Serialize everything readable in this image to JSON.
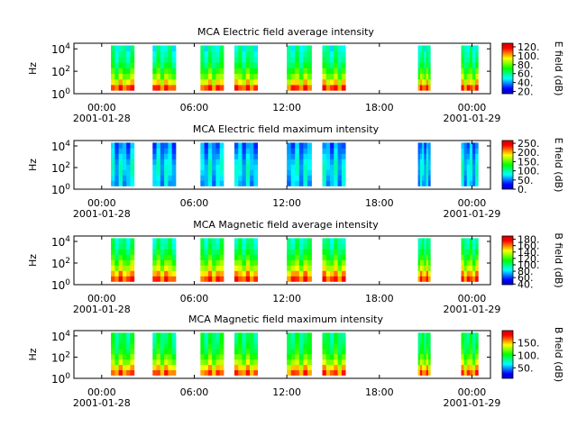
{
  "colors": {
    "colormap": [
      "#0000cc",
      "#0000ff",
      "#0080ff",
      "#00ffff",
      "#00ff80",
      "#00ff00",
      "#80ff00",
      "#ffff00",
      "#ff8000",
      "#ff0000",
      "#cc0000"
    ],
    "gap": "#ffffff",
    "axis": "#000000"
  },
  "chart_data": [
    {
      "type": "heatmap",
      "title": "MCA  Electric field average intensity",
      "ylabel": "Hz",
      "colorbar_label": "E field (dB)",
      "colorbar_ticks": [
        "20.",
        "40.",
        "60.",
        "80.",
        "100.",
        "120."
      ],
      "colorbar_range": [
        15,
        128
      ],
      "yticks": [
        "10^0",
        "10^2",
        "10^4"
      ],
      "xticks": [
        {
          "time": "00:00",
          "date": "2001-01-28"
        },
        {
          "time": "06:00",
          "date": ""
        },
        {
          "time": "12:00",
          "date": ""
        },
        {
          "time": "18:00",
          "date": ""
        },
        {
          "time": "00:00",
          "date": "2001-01-29"
        }
      ],
      "xlim_hours": [
        -1.8,
        25.2
      ],
      "ylim_log10_hz": [
        0,
        4.5
      ],
      "data_coverage_hours": [
        [
          0.6,
          2.1
        ],
        [
          3.3,
          4.8
        ],
        [
          6.4,
          7.9
        ],
        [
          8.6,
          10.1
        ],
        [
          12.0,
          13.6
        ],
        [
          14.3,
          15.8
        ],
        [
          20.5,
          21.3
        ],
        [
          23.3,
          24.4
        ]
      ],
      "intensity_level_low_freq_to_high": [
        0.85,
        0.7,
        0.6,
        0.52,
        0.45,
        0.4,
        0.38,
        0.35
      ]
    },
    {
      "type": "heatmap",
      "title": "MCA  Electric field maximum intensity",
      "ylabel": "Hz",
      "colorbar_label": "E field (dB)",
      "colorbar_ticks": [
        "0.",
        "50.",
        "100.",
        "150.",
        "200.",
        "250."
      ],
      "colorbar_range": [
        0,
        265
      ],
      "yticks": [
        "10^0",
        "10^2",
        "10^4"
      ],
      "xticks": [
        {
          "time": "00:00",
          "date": "2001-01-28"
        },
        {
          "time": "06:00",
          "date": ""
        },
        {
          "time": "12:00",
          "date": ""
        },
        {
          "time": "18:00",
          "date": ""
        },
        {
          "time": "00:00",
          "date": "2001-01-29"
        }
      ],
      "xlim_hours": [
        -1.8,
        25.2
      ],
      "ylim_log10_hz": [
        0,
        4.5
      ],
      "data_coverage_hours": [
        [
          0.6,
          2.1
        ],
        [
          3.3,
          4.8
        ],
        [
          6.4,
          7.9
        ],
        [
          8.6,
          10.1
        ],
        [
          12.0,
          13.6
        ],
        [
          14.3,
          15.8
        ],
        [
          20.5,
          21.3
        ],
        [
          23.3,
          24.4
        ]
      ],
      "intensity_level_low_freq_to_high": [
        0.25,
        0.27,
        0.29,
        0.3,
        0.28,
        0.25,
        0.22,
        0.2
      ]
    },
    {
      "type": "heatmap",
      "title": "MCA  Magnetic field average intensity",
      "ylabel": "Hz",
      "colorbar_label": "B field (dB)",
      "colorbar_ticks": [
        "40.",
        "60.",
        "80.",
        "100.",
        "120.",
        "140.",
        "160.",
        "180."
      ],
      "colorbar_range": [
        38,
        190
      ],
      "yticks": [
        "10^0",
        "10^2",
        "10^4"
      ],
      "xticks": [
        {
          "time": "00:00",
          "date": "2001-01-28"
        },
        {
          "time": "06:00",
          "date": ""
        },
        {
          "time": "12:00",
          "date": ""
        },
        {
          "time": "18:00",
          "date": ""
        },
        {
          "time": "00:00",
          "date": "2001-01-29"
        }
      ],
      "xlim_hours": [
        -1.8,
        25.2
      ],
      "ylim_log10_hz": [
        0,
        4.5
      ],
      "data_coverage_hours": [
        [
          0.6,
          2.1
        ],
        [
          3.3,
          4.8
        ],
        [
          6.4,
          7.9
        ],
        [
          8.6,
          10.1
        ],
        [
          12.0,
          13.6
        ],
        [
          14.3,
          15.8
        ],
        [
          20.5,
          21.3
        ],
        [
          23.3,
          24.4
        ]
      ],
      "intensity_level_low_freq_to_high": [
        0.85,
        0.75,
        0.65,
        0.58,
        0.5,
        0.45,
        0.4,
        0.38
      ]
    },
    {
      "type": "heatmap",
      "title": "MCA  Magnetic field maximum intensity",
      "ylabel": "Hz",
      "colorbar_label": "B field (dB)",
      "colorbar_ticks": [
        "50.",
        "100.",
        "150."
      ],
      "colorbar_range": [
        8,
        198
      ],
      "yticks": [
        "10^0",
        "10^2",
        "10^4"
      ],
      "xticks": [
        {
          "time": "00:00",
          "date": "2001-01-28"
        },
        {
          "time": "06:00",
          "date": ""
        },
        {
          "time": "12:00",
          "date": ""
        },
        {
          "time": "18:00",
          "date": ""
        },
        {
          "time": "00:00",
          "date": "2001-01-29"
        }
      ],
      "xlim_hours": [
        -1.8,
        25.2
      ],
      "ylim_log10_hz": [
        0,
        4.5
      ],
      "data_coverage_hours": [
        [
          0.6,
          2.1
        ],
        [
          3.3,
          4.8
        ],
        [
          6.4,
          7.9
        ],
        [
          8.6,
          10.1
        ],
        [
          12.0,
          13.6
        ],
        [
          14.3,
          15.8
        ],
        [
          20.5,
          21.3
        ],
        [
          23.3,
          24.4
        ]
      ],
      "intensity_level_low_freq_to_high": [
        0.82,
        0.72,
        0.62,
        0.55,
        0.48,
        0.45,
        0.43,
        0.42
      ]
    }
  ]
}
